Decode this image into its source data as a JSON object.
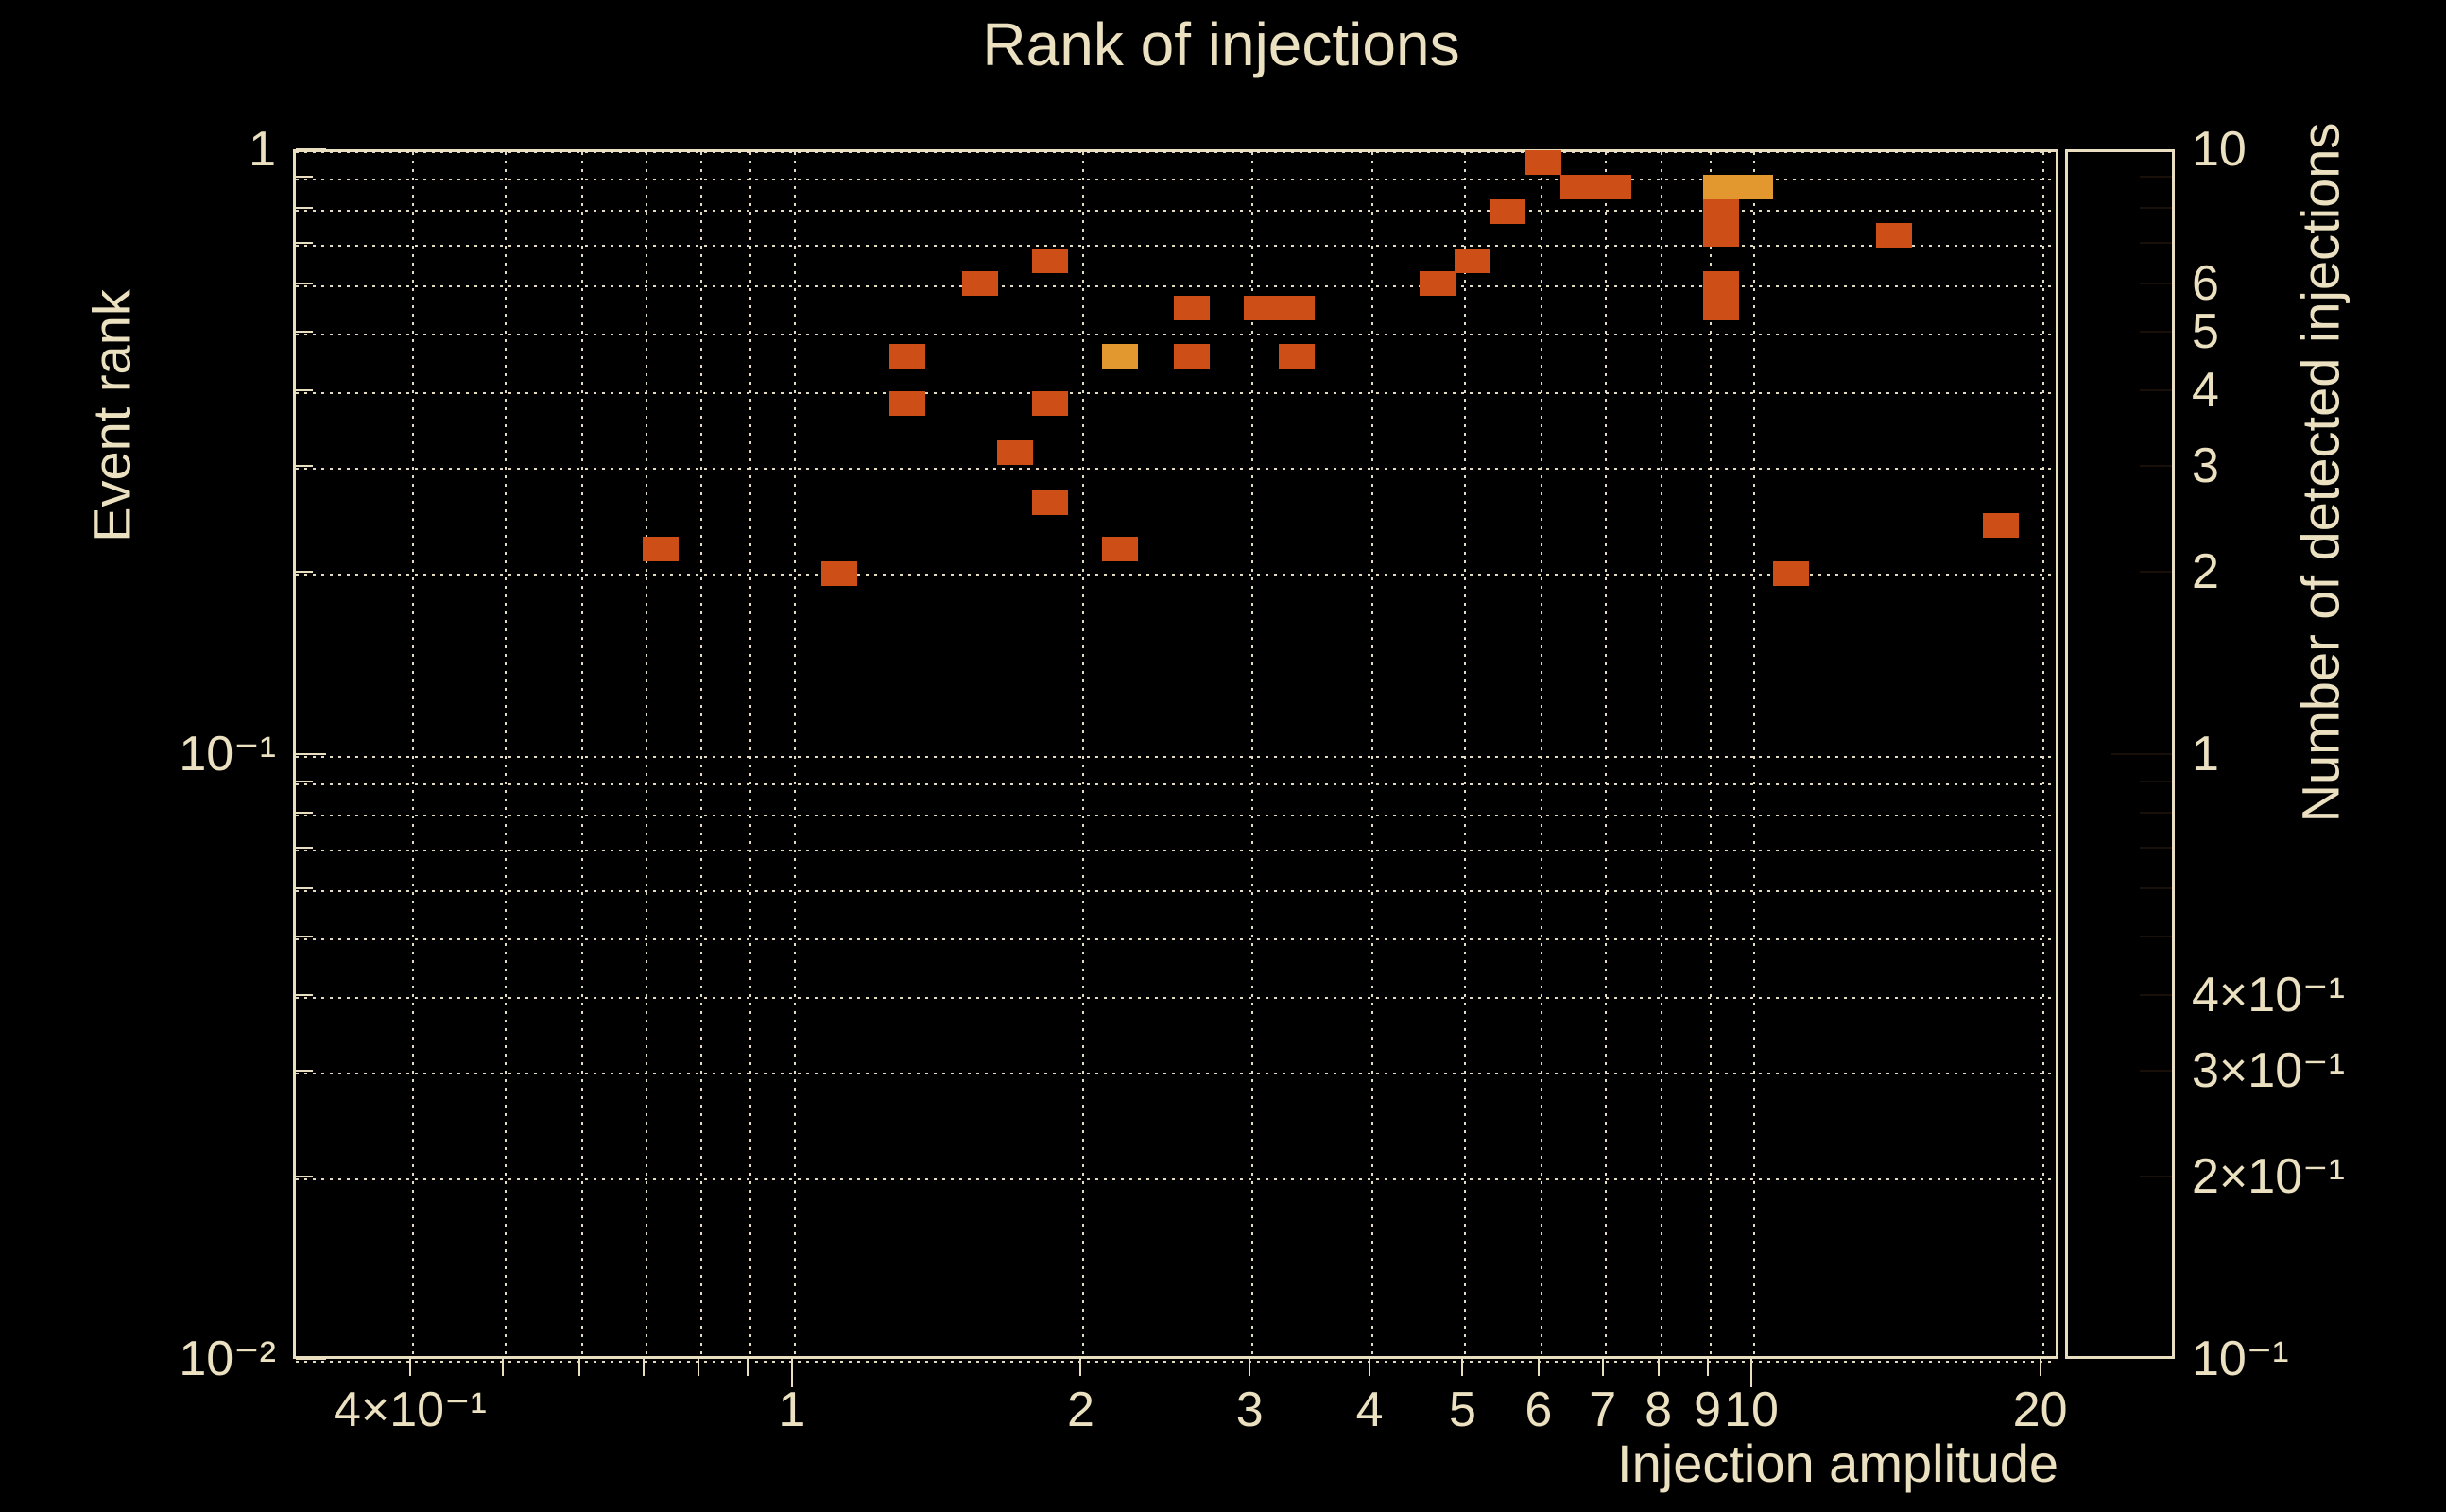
{
  "title": "Rank of injections",
  "colors": {
    "background": "#000000",
    "foreground": "#ebe1c1",
    "count_palette": {
      "1": "#cd4f17",
      "3": "#e2982e"
    },
    "colorbar_top": "#f7f3ea",
    "colorbar_bottom": "#0a0614"
  },
  "chart_data": {
    "type": "heatmap",
    "title": "Rank of injections",
    "xlabel": "Injection amplitude",
    "ylabel": "Event rank",
    "zlabel": "Number of detected injections",
    "xscale": "log",
    "yscale": "log",
    "zscale": "log",
    "xlim": [
      0.302,
      20.9
    ],
    "ylim": [
      0.01,
      1.0
    ],
    "zlim": [
      0.1,
      10
    ],
    "grid": true,
    "legend_position": "right-colorbar",
    "x_ticks": [
      {
        "v": 0.4,
        "label": "4×10⁻¹",
        "major": false
      },
      {
        "v": 0.5,
        "label": null,
        "major": false
      },
      {
        "v": 0.6,
        "label": null,
        "major": false
      },
      {
        "v": 0.7,
        "label": null,
        "major": false
      },
      {
        "v": 0.8,
        "label": null,
        "major": false
      },
      {
        "v": 0.9,
        "label": null,
        "major": false
      },
      {
        "v": 1,
        "label": "1",
        "major": true
      },
      {
        "v": 2,
        "label": "2",
        "major": false
      },
      {
        "v": 3,
        "label": "3",
        "major": false
      },
      {
        "v": 4,
        "label": "4",
        "major": false
      },
      {
        "v": 5,
        "label": "5",
        "major": false
      },
      {
        "v": 6,
        "label": "6",
        "major": false
      },
      {
        "v": 7,
        "label": "7",
        "major": false
      },
      {
        "v": 8,
        "label": "8",
        "major": false
      },
      {
        "v": 9,
        "label": "9",
        "major": false
      },
      {
        "v": 10,
        "label": "10",
        "major": true
      },
      {
        "v": 20,
        "label": "20",
        "major": false
      }
    ],
    "y_ticks": [
      {
        "v": 1.0,
        "label": "1",
        "major": true
      },
      {
        "v": 0.9,
        "label": null,
        "major": false
      },
      {
        "v": 0.8,
        "label": null,
        "major": false
      },
      {
        "v": 0.7,
        "label": null,
        "major": false
      },
      {
        "v": 0.6,
        "label": null,
        "major": false
      },
      {
        "v": 0.5,
        "label": null,
        "major": false
      },
      {
        "v": 0.4,
        "label": null,
        "major": false
      },
      {
        "v": 0.3,
        "label": null,
        "major": false
      },
      {
        "v": 0.2,
        "label": null,
        "major": false
      },
      {
        "v": 0.1,
        "label": "10⁻¹",
        "major": true
      },
      {
        "v": 0.09,
        "label": null,
        "major": false
      },
      {
        "v": 0.08,
        "label": null,
        "major": false
      },
      {
        "v": 0.07,
        "label": null,
        "major": false
      },
      {
        "v": 0.06,
        "label": null,
        "major": false
      },
      {
        "v": 0.05,
        "label": null,
        "major": false
      },
      {
        "v": 0.04,
        "label": null,
        "major": false
      },
      {
        "v": 0.03,
        "label": null,
        "major": false
      },
      {
        "v": 0.02,
        "label": null,
        "major": false
      },
      {
        "v": 0.01,
        "label": "10⁻²",
        "major": true
      }
    ],
    "z_ticks": [
      {
        "v": 10,
        "label": "10",
        "major": true
      },
      {
        "v": 9,
        "label": null,
        "major": false
      },
      {
        "v": 8,
        "label": null,
        "major": false
      },
      {
        "v": 7,
        "label": null,
        "major": false
      },
      {
        "v": 6,
        "label": "6",
        "major": false
      },
      {
        "v": 5,
        "label": "5",
        "major": false
      },
      {
        "v": 4,
        "label": "4",
        "major": false
      },
      {
        "v": 3,
        "label": "3",
        "major": false
      },
      {
        "v": 2,
        "label": "2",
        "major": false
      },
      {
        "v": 1,
        "label": "1",
        "major": true
      },
      {
        "v": 0.9,
        "label": null,
        "major": false
      },
      {
        "v": 0.8,
        "label": null,
        "major": false
      },
      {
        "v": 0.7,
        "label": null,
        "major": false
      },
      {
        "v": 0.6,
        "label": null,
        "major": false
      },
      {
        "v": 0.5,
        "label": null,
        "major": false
      },
      {
        "v": 0.4,
        "label": "4×10⁻¹",
        "major": false
      },
      {
        "v": 0.3,
        "label": "3×10⁻¹",
        "major": false
      },
      {
        "v": 0.2,
        "label": "2×10⁻¹",
        "major": false
      },
      {
        "v": 0.1,
        "label": "10⁻¹",
        "major": true
      }
    ],
    "bins": [
      {
        "x": 0.73,
        "y": 0.218,
        "n": 1
      },
      {
        "x": 1.12,
        "y": 0.199,
        "n": 1
      },
      {
        "x": 1.32,
        "y": 0.455,
        "n": 1
      },
      {
        "x": 1.32,
        "y": 0.38,
        "n": 1
      },
      {
        "x": 1.57,
        "y": 0.6,
        "n": 1
      },
      {
        "x": 1.71,
        "y": 0.315,
        "n": 1
      },
      {
        "x": 1.86,
        "y": 0.655,
        "n": 1
      },
      {
        "x": 1.86,
        "y": 0.38,
        "n": 1
      },
      {
        "x": 1.86,
        "y": 0.26,
        "n": 1
      },
      {
        "x": 2.2,
        "y": 0.455,
        "n": 3
      },
      {
        "x": 2.2,
        "y": 0.218,
        "n": 1
      },
      {
        "x": 2.61,
        "y": 0.546,
        "n": 1
      },
      {
        "x": 2.61,
        "y": 0.455,
        "n": 1
      },
      {
        "x": 3.09,
        "y": 0.546,
        "n": 1
      },
      {
        "x": 3.36,
        "y": 0.546,
        "n": 1
      },
      {
        "x": 3.36,
        "y": 0.455,
        "n": 1
      },
      {
        "x": 4.71,
        "y": 0.6,
        "n": 1
      },
      {
        "x": 5.12,
        "y": 0.655,
        "n": 1
      },
      {
        "x": 5.57,
        "y": 0.79,
        "n": 1
      },
      {
        "x": 6.07,
        "y": 0.95,
        "n": 1
      },
      {
        "x": 6.6,
        "y": 0.866,
        "n": 1
      },
      {
        "x": 7.18,
        "y": 0.866,
        "n": 1
      },
      {
        "x": 9.3,
        "y": 0.866,
        "n": 3
      },
      {
        "x": 10.1,
        "y": 0.866,
        "n": 3
      },
      {
        "x": 9.3,
        "y": 0.79,
        "n": 1
      },
      {
        "x": 9.3,
        "y": 0.724,
        "n": 1
      },
      {
        "x": 9.3,
        "y": 0.6,
        "n": 1
      },
      {
        "x": 9.3,
        "y": 0.546,
        "n": 1
      },
      {
        "x": 11.0,
        "y": 0.199,
        "n": 1
      },
      {
        "x": 14.1,
        "y": 0.72,
        "n": 1
      },
      {
        "x": 18.2,
        "y": 0.239,
        "n": 1
      }
    ]
  }
}
